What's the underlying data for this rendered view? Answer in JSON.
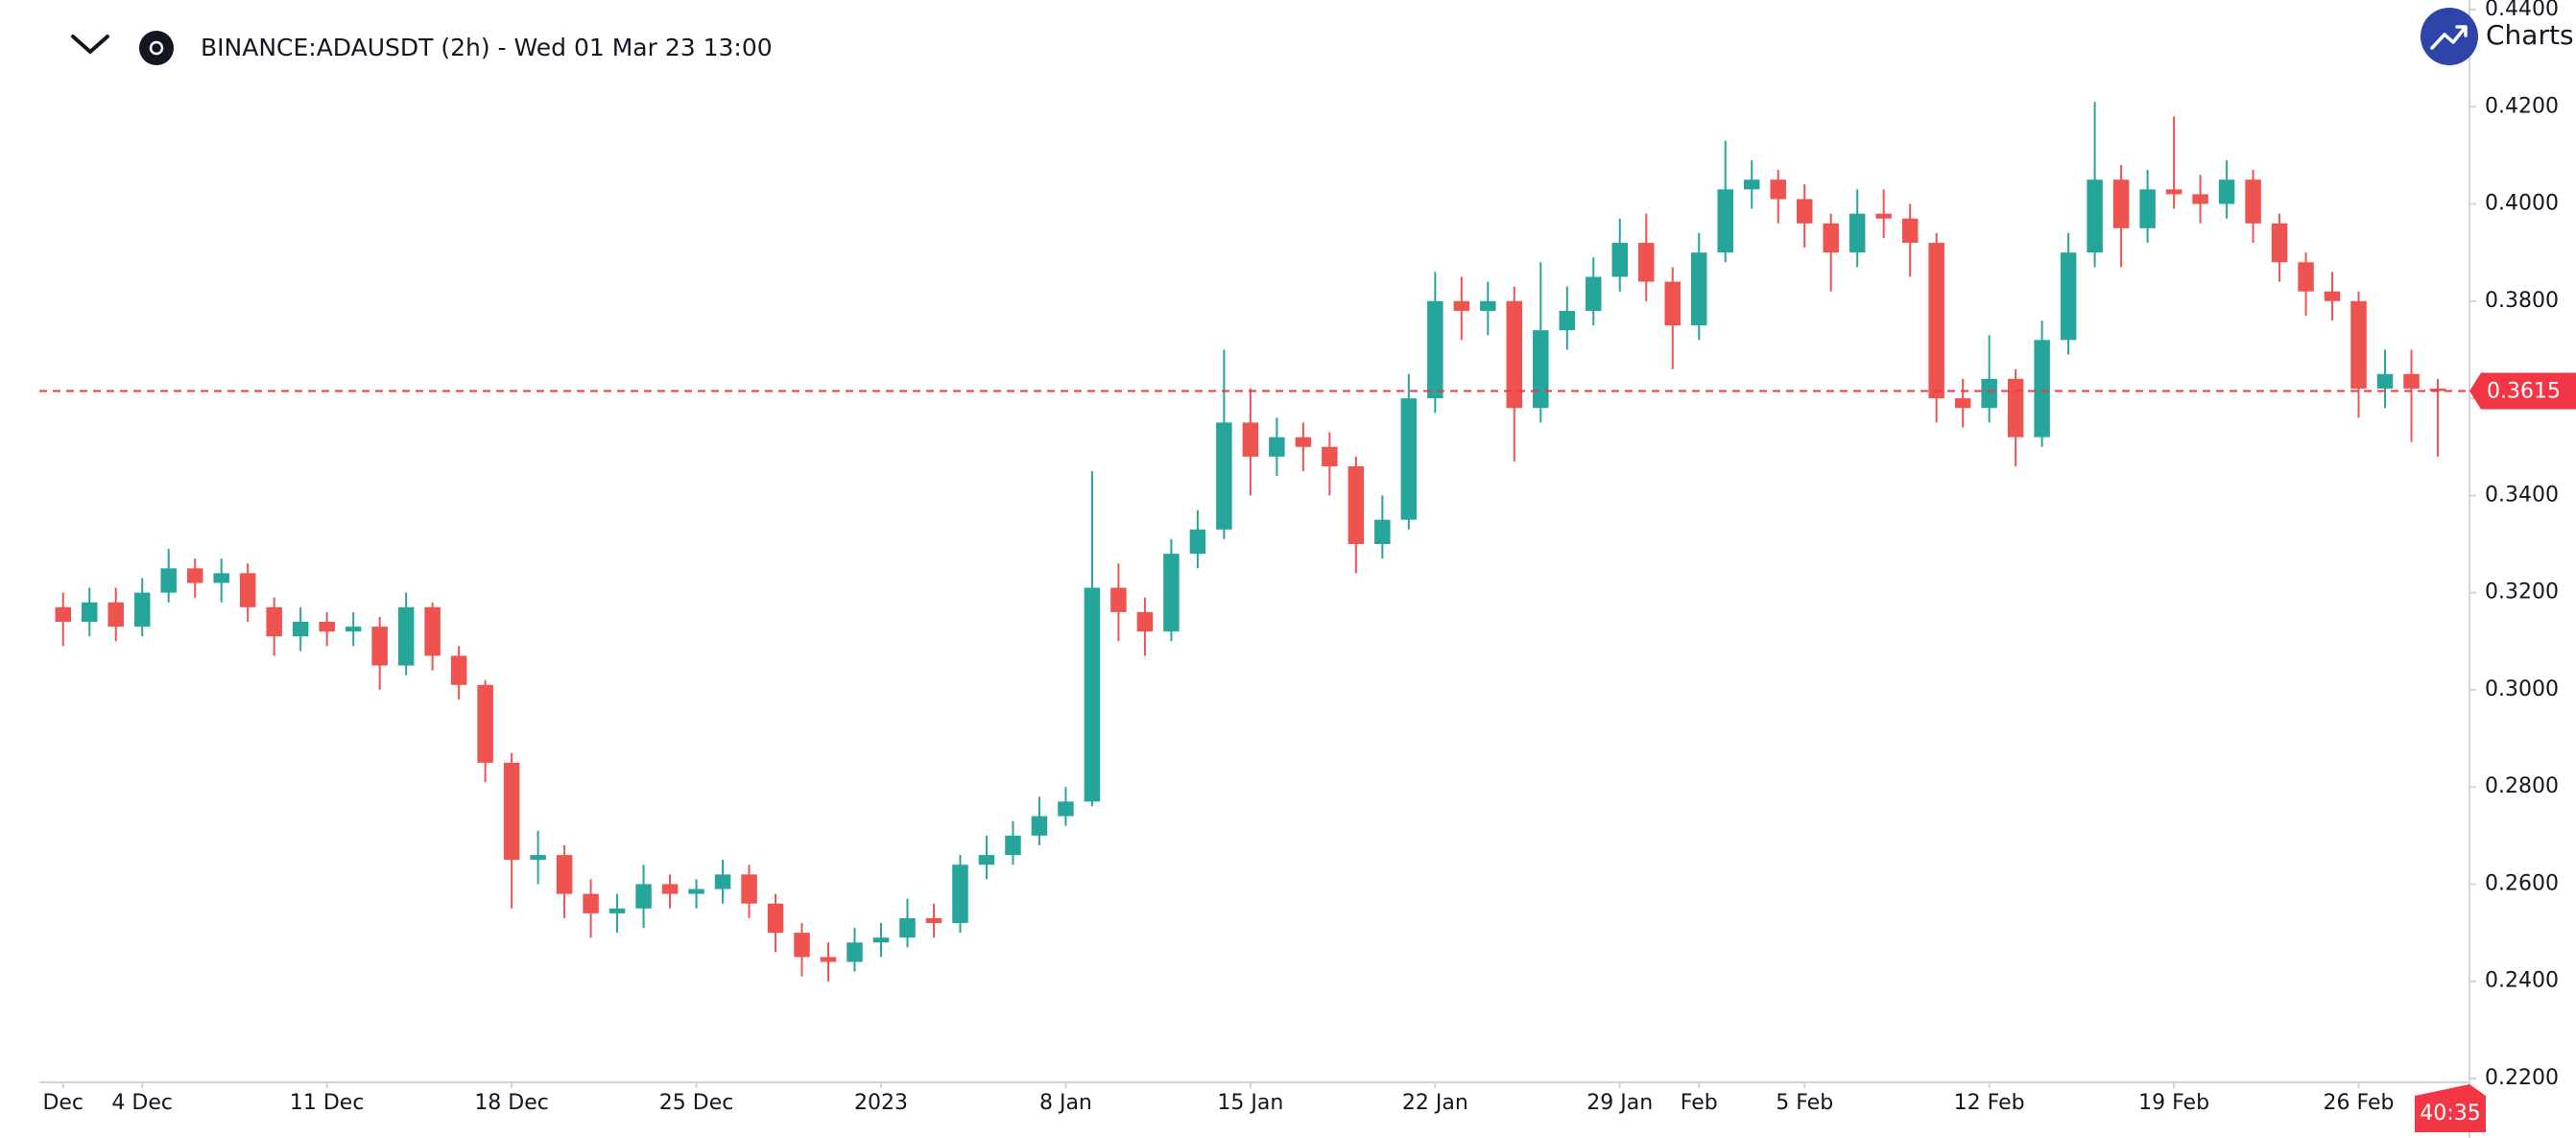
{
  "chart_data": {
    "type": "candlestick",
    "title": "BINANCE:ADAUSDT (2h) - Wed 01 Mar 23 13:00",
    "brand": "Charts",
    "countdown": "40:35",
    "up_color": "#26a69a",
    "down_color": "#ef5350",
    "last_price": 0.3615,
    "last_price_color": "#f23645",
    "x": [
      0,
      1,
      2,
      3,
      4,
      5,
      6,
      7,
      8,
      9,
      10,
      11,
      12,
      13,
      14,
      15,
      16,
      17,
      18,
      19,
      20,
      21,
      22,
      23,
      24,
      25,
      26,
      27,
      28,
      29,
      30,
      31,
      32,
      33,
      34,
      35,
      36,
      37,
      38,
      39,
      40,
      41,
      42,
      43,
      44,
      45,
      46,
      47,
      48,
      49,
      50,
      51,
      52,
      53,
      54,
      55,
      56,
      57,
      58,
      59,
      60,
      61,
      62,
      63,
      64,
      65,
      66,
      67,
      68,
      69,
      70,
      71,
      72,
      73,
      74,
      75,
      76,
      77,
      78,
      79,
      80,
      81,
      82,
      83,
      84,
      85,
      86,
      87,
      88,
      89,
      90
    ],
    "open": [
      0.317,
      0.314,
      0.318,
      0.313,
      0.32,
      0.325,
      0.322,
      0.324,
      0.317,
      0.311,
      0.314,
      0.312,
      0.313,
      0.305,
      0.317,
      0.307,
      0.301,
      0.285,
      0.265,
      0.266,
      0.258,
      0.254,
      0.255,
      0.26,
      0.258,
      0.259,
      0.262,
      0.256,
      0.25,
      0.245,
      0.244,
      0.248,
      0.249,
      0.253,
      0.252,
      0.264,
      0.266,
      0.27,
      0.274,
      0.277,
      0.321,
      0.316,
      0.312,
      0.328,
      0.333,
      0.355,
      0.348,
      0.352,
      0.35,
      0.346,
      0.33,
      0.335,
      0.36,
      0.38,
      0.378,
      0.38,
      0.358,
      0.374,
      0.378,
      0.385,
      0.392,
      0.384,
      0.375,
      0.39,
      0.403,
      0.405,
      0.401,
      0.396,
      0.39,
      0.398,
      0.397,
      0.392,
      0.36,
      0.358,
      0.364,
      0.352,
      0.372,
      0.39,
      0.405,
      0.395,
      0.403,
      0.402,
      0.4,
      0.405,
      0.396,
      0.388,
      0.382,
      0.38,
      0.362,
      0.365,
      0.362
    ],
    "high": [
      0.32,
      0.321,
      0.321,
      0.323,
      0.329,
      0.327,
      0.327,
      0.326,
      0.319,
      0.317,
      0.316,
      0.316,
      0.315,
      0.32,
      0.318,
      0.309,
      0.302,
      0.287,
      0.271,
      0.268,
      0.261,
      0.258,
      0.264,
      0.262,
      0.261,
      0.265,
      0.264,
      0.258,
      0.252,
      0.248,
      0.251,
      0.252,
      0.257,
      0.256,
      0.266,
      0.27,
      0.273,
      0.278,
      0.28,
      0.345,
      0.326,
      0.319,
      0.331,
      0.337,
      0.37,
      0.362,
      0.356,
      0.355,
      0.353,
      0.348,
      0.34,
      0.365,
      0.386,
      0.385,
      0.384,
      0.383,
      0.388,
      0.383,
      0.389,
      0.397,
      0.398,
      0.387,
      0.394,
      0.413,
      0.409,
      0.407,
      0.404,
      0.398,
      0.403,
      0.403,
      0.4,
      0.394,
      0.364,
      0.373,
      0.366,
      0.376,
      0.394,
      0.421,
      0.408,
      0.407,
      0.418,
      0.406,
      0.409,
      0.407,
      0.398,
      0.39,
      0.386,
      0.382,
      0.37,
      0.37,
      0.364
    ],
    "low": [
      0.309,
      0.311,
      0.31,
      0.311,
      0.318,
      0.319,
      0.318,
      0.314,
      0.307,
      0.308,
      0.309,
      0.309,
      0.3,
      0.303,
      0.304,
      0.298,
      0.281,
      0.255,
      0.26,
      0.253,
      0.249,
      0.25,
      0.251,
      0.255,
      0.255,
      0.256,
      0.253,
      0.246,
      0.241,
      0.24,
      0.242,
      0.245,
      0.247,
      0.249,
      0.25,
      0.261,
      0.264,
      0.268,
      0.272,
      0.276,
      0.31,
      0.307,
      0.31,
      0.325,
      0.331,
      0.34,
      0.344,
      0.345,
      0.34,
      0.324,
      0.327,
      0.333,
      0.357,
      0.372,
      0.373,
      0.347,
      0.355,
      0.37,
      0.375,
      0.382,
      0.38,
      0.366,
      0.372,
      0.388,
      0.399,
      0.396,
      0.391,
      0.382,
      0.387,
      0.393,
      0.385,
      0.355,
      0.354,
      0.355,
      0.346,
      0.35,
      0.369,
      0.387,
      0.387,
      0.392,
      0.399,
      0.396,
      0.397,
      0.392,
      0.384,
      0.377,
      0.376,
      0.356,
      0.358,
      0.351,
      0.348
    ],
    "close": [
      0.314,
      0.318,
      0.313,
      0.32,
      0.325,
      0.322,
      0.324,
      0.317,
      0.311,
      0.314,
      0.312,
      0.313,
      0.305,
      0.317,
      0.307,
      0.301,
      0.285,
      0.265,
      0.266,
      0.258,
      0.254,
      0.255,
      0.26,
      0.258,
      0.259,
      0.262,
      0.256,
      0.25,
      0.245,
      0.244,
      0.248,
      0.249,
      0.253,
      0.252,
      0.264,
      0.266,
      0.27,
      0.274,
      0.277,
      0.321,
      0.316,
      0.312,
      0.328,
      0.333,
      0.355,
      0.348,
      0.352,
      0.35,
      0.346,
      0.33,
      0.335,
      0.36,
      0.38,
      0.378,
      0.38,
      0.358,
      0.374,
      0.378,
      0.385,
      0.392,
      0.384,
      0.375,
      0.39,
      0.403,
      0.405,
      0.401,
      0.396,
      0.39,
      0.398,
      0.397,
      0.392,
      0.36,
      0.358,
      0.364,
      0.352,
      0.372,
      0.39,
      0.405,
      0.395,
      0.403,
      0.402,
      0.4,
      0.405,
      0.396,
      0.388,
      0.382,
      0.38,
      0.362,
      0.365,
      0.362,
      0.3615
    ],
    "xlim": [
      -0.9,
      91.2
    ],
    "ylim": [
      0.22,
      0.44
    ],
    "xticks": [
      {
        "value": 0,
        "label": "Dec"
      },
      {
        "value": 3,
        "label": "4 Dec"
      },
      {
        "value": 10,
        "label": "11 Dec"
      },
      {
        "value": 17,
        "label": "18 Dec"
      },
      {
        "value": 24,
        "label": "25 Dec"
      },
      {
        "value": 31,
        "label": "2023"
      },
      {
        "value": 38,
        "label": "8 Jan"
      },
      {
        "value": 45,
        "label": "15 Jan"
      },
      {
        "value": 52,
        "label": "22 Jan"
      },
      {
        "value": 59,
        "label": "29 Jan"
      },
      {
        "value": 62,
        "label": "Feb"
      },
      {
        "value": 66,
        "label": "5 Feb"
      },
      {
        "value": 73,
        "label": "12 Feb"
      },
      {
        "value": 80,
        "label": "19 Feb"
      },
      {
        "value": 87,
        "label": "26 Feb"
      }
    ],
    "yticks": [
      {
        "value": 0.22,
        "label": "0.2200"
      },
      {
        "value": 0.24,
        "label": "0.2400"
      },
      {
        "value": 0.26,
        "label": "0.2600"
      },
      {
        "value": 0.28,
        "label": "0.2800"
      },
      {
        "value": 0.3,
        "label": "0.3000"
      },
      {
        "value": 0.32,
        "label": "0.3200"
      },
      {
        "value": 0.34,
        "label": "0.3400"
      },
      {
        "value": 0.36,
        "label": "0.3600"
      },
      {
        "value": 0.38,
        "label": "0.3800"
      },
      {
        "value": 0.4,
        "label": "0.4000"
      },
      {
        "value": 0.42,
        "label": "0.4200"
      },
      {
        "value": 0.44,
        "label": "0.4400"
      }
    ]
  }
}
